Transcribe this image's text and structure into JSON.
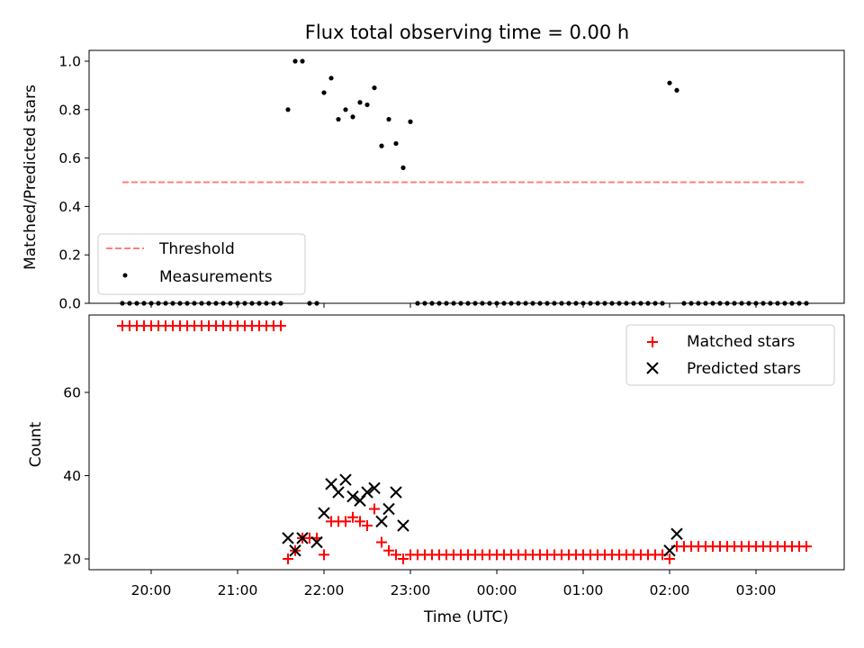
{
  "chart_data": [
    {
      "type": "scatter",
      "title": "Flux total observing time = 0.00 h",
      "xlabel": "",
      "ylabel": "Matched/Predicted stars",
      "ylim": [
        0,
        1.05
      ],
      "yticks": [
        "0.0",
        "0.2",
        "0.4",
        "0.6",
        "0.8",
        "1.0"
      ],
      "yticks_values": [
        0,
        0.2,
        0.4,
        0.6,
        0.8,
        1.0
      ],
      "legend_placement": "lower-left",
      "series": [
        {
          "name": "Threshold",
          "kind": "line",
          "style": "dashed",
          "color": "#ff7f7f",
          "x_start": "19:40",
          "x_end": "03:35",
          "value": 0.5
        },
        {
          "name": "Measurements",
          "kind": "scatter",
          "color": "#000000",
          "x": [
            "19:40",
            "19:45",
            "19:50",
            "19:55",
            "20:00",
            "20:05",
            "20:10",
            "20:15",
            "20:20",
            "20:25",
            "20:30",
            "20:35",
            "20:40",
            "20:45",
            "20:50",
            "20:55",
            "21:00",
            "21:05",
            "21:10",
            "21:15",
            "21:20",
            "21:25",
            "21:30",
            "21:35",
            "21:40",
            "21:45",
            "21:50",
            "21:55",
            "22:00",
            "22:05",
            "22:10",
            "22:15",
            "22:20",
            "22:25",
            "22:30",
            "22:35",
            "22:40",
            "22:45",
            "22:50",
            "22:55",
            "23:00",
            "23:05",
            "23:10",
            "23:15",
            "23:20",
            "23:25",
            "23:30",
            "23:35",
            "23:40",
            "23:45",
            "23:50",
            "23:55",
            "00:00",
            "00:05",
            "00:10",
            "00:15",
            "00:20",
            "00:25",
            "00:30",
            "00:35",
            "00:40",
            "00:45",
            "00:50",
            "00:55",
            "01:00",
            "01:05",
            "01:10",
            "01:15",
            "01:20",
            "01:25",
            "01:30",
            "01:35",
            "01:40",
            "01:45",
            "01:50",
            "01:55",
            "02:00",
            "02:05",
            "02:10",
            "02:15",
            "02:20",
            "02:25",
            "02:30",
            "02:35",
            "02:40",
            "02:45",
            "02:50",
            "02:55",
            "03:00",
            "03:05",
            "03:10",
            "03:15",
            "03:20",
            "03:25",
            "03:30",
            "03:35"
          ],
          "values": [
            0,
            0,
            0,
            0,
            0,
            0,
            0,
            0,
            0,
            0,
            0,
            0,
            0,
            0,
            0,
            0,
            0,
            0,
            0,
            0,
            0,
            0,
            0,
            0.8,
            1.0,
            1.0,
            0,
            0,
            0.87,
            0.93,
            0.76,
            0.8,
            0.77,
            0.83,
            0.82,
            0.89,
            0.65,
            0.76,
            0.66,
            0.56,
            0.75,
            0,
            0,
            0,
            0,
            0,
            0,
            0,
            0,
            0,
            0,
            0,
            0,
            0,
            0,
            0,
            0,
            0,
            0,
            0,
            0,
            0,
            0,
            0,
            0,
            0,
            0,
            0,
            0,
            0,
            0,
            0,
            0,
            0,
            0,
            0,
            0.91,
            0.88,
            0,
            0,
            0,
            0,
            0,
            0,
            0,
            0,
            0,
            0,
            0,
            0,
            0,
            0,
            0,
            0,
            0,
            0
          ]
        }
      ]
    },
    {
      "type": "scatter",
      "title": "",
      "xlabel": "Time (UTC)",
      "ylabel": "Count",
      "ylim": [
        17,
        80
      ],
      "yticks": [
        "20",
        "40",
        "60"
      ],
      "yticks_values": [
        20,
        40,
        60
      ],
      "xticks": [
        "20:00",
        "21:00",
        "22:00",
        "23:00",
        "00:00",
        "01:00",
        "02:00",
        "03:00"
      ],
      "legend_placement": "top-right",
      "series": [
        {
          "name": "Matched stars",
          "marker": "+",
          "color": "#ff0000",
          "x": [
            "19:40",
            "19:45",
            "19:50",
            "19:55",
            "20:00",
            "20:05",
            "20:10",
            "20:15",
            "20:20",
            "20:25",
            "20:30",
            "20:35",
            "20:40",
            "20:45",
            "20:50",
            "20:55",
            "21:00",
            "21:05",
            "21:10",
            "21:15",
            "21:20",
            "21:25",
            "21:30",
            "21:35",
            "21:40",
            "21:45",
            "21:50",
            "21:55",
            "22:00",
            "22:05",
            "22:10",
            "22:15",
            "22:20",
            "22:25",
            "22:30",
            "22:35",
            "22:40",
            "22:45",
            "22:50",
            "22:55",
            "23:00",
            "23:05",
            "23:10",
            "23:15",
            "23:20",
            "23:25",
            "23:30",
            "23:35",
            "23:40",
            "23:45",
            "23:50",
            "23:55",
            "00:00",
            "00:05",
            "00:10",
            "00:15",
            "00:20",
            "00:25",
            "00:30",
            "00:35",
            "00:40",
            "00:45",
            "00:50",
            "00:55",
            "01:00",
            "01:05",
            "01:10",
            "01:15",
            "01:20",
            "01:25",
            "01:30",
            "01:35",
            "01:40",
            "01:45",
            "01:50",
            "01:55",
            "02:00",
            "02:05",
            "02:10",
            "02:15",
            "02:20",
            "02:25",
            "02:30",
            "02:35",
            "02:40",
            "02:45",
            "02:50",
            "02:55",
            "03:00",
            "03:05",
            "03:10",
            "03:15",
            "03:20",
            "03:25",
            "03:30",
            "03:35"
          ],
          "values": [
            76,
            76,
            76,
            76,
            76,
            76,
            76,
            76,
            76,
            76,
            76,
            76,
            76,
            76,
            76,
            76,
            76,
            76,
            76,
            76,
            76,
            76,
            76,
            20,
            22,
            25,
            25,
            25,
            21,
            29,
            29,
            29,
            30,
            29,
            28,
            32,
            24,
            22,
            21,
            20,
            21,
            21,
            21,
            21,
            21,
            21,
            21,
            21,
            21,
            21,
            21,
            21,
            21,
            21,
            21,
            21,
            21,
            21,
            21,
            21,
            21,
            21,
            21,
            21,
            21,
            21,
            21,
            21,
            21,
            21,
            21,
            21,
            21,
            21,
            21,
            21,
            20,
            23,
            23,
            23,
            23,
            23,
            23,
            23,
            23,
            23,
            23,
            23,
            23,
            23,
            23,
            23,
            23,
            23,
            23,
            23
          ]
        },
        {
          "name": "Predicted stars",
          "marker": "x",
          "color": "#000000",
          "x": [
            "21:35",
            "21:40",
            "21:45",
            "21:55",
            "22:00",
            "22:05",
            "22:10",
            "22:15",
            "22:20",
            "22:25",
            "22:30",
            "22:35",
            "22:40",
            "22:45",
            "22:50",
            "22:55",
            "02:00",
            "02:05"
          ],
          "values": [
            25,
            22,
            25,
            24,
            31,
            38,
            36,
            39,
            35,
            34,
            36,
            37,
            29,
            32,
            36,
            28,
            22,
            26
          ]
        }
      ]
    }
  ]
}
